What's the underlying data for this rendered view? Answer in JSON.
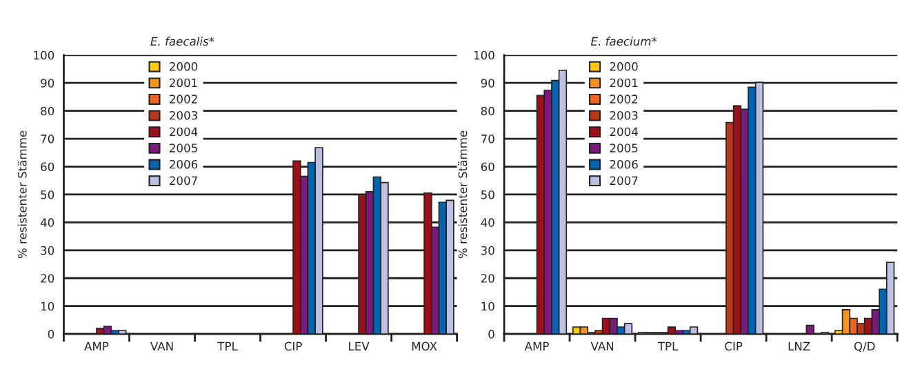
{
  "chart_data": [
    {
      "type": "bar",
      "title": "E. faecalis*",
      "ylabel": "% resistenter Stämme",
      "categories": [
        "AMP",
        "VAN",
        "TPL",
        "CIP",
        "LEV",
        "MOX"
      ],
      "ylim": [
        0,
        100
      ],
      "yticks": [
        0,
        10,
        20,
        30,
        40,
        50,
        60,
        70,
        80,
        90,
        100
      ],
      "grid": "y",
      "legend": "top left",
      "series": [
        {
          "name": "2000",
          "color": "#ffcc00",
          "values": [
            null,
            null,
            null,
            null,
            null,
            null
          ]
        },
        {
          "name": "2001",
          "color": "#f7941d",
          "values": [
            null,
            null,
            null,
            null,
            null,
            null
          ]
        },
        {
          "name": "2002",
          "color": "#f26522",
          "values": [
            null,
            null,
            null,
            null,
            null,
            null
          ]
        },
        {
          "name": "2003",
          "color": "#b5391a",
          "values": [
            null,
            null,
            null,
            null,
            null,
            null
          ]
        },
        {
          "name": "2004",
          "color": "#9b1117",
          "values": [
            2,
            null,
            null,
            62,
            50,
            50.5
          ]
        },
        {
          "name": "2005",
          "color": "#7b1a7a",
          "values": [
            2.7,
            null,
            null,
            56.5,
            51,
            38.3
          ]
        },
        {
          "name": "2006",
          "color": "#0066b3",
          "values": [
            1.2,
            null,
            null,
            61.5,
            56.3,
            47.2
          ]
        },
        {
          "name": "2007",
          "color": "#bcc0e3",
          "values": [
            1.2,
            null,
            null,
            66.8,
            54.3,
            47.9
          ]
        }
      ]
    },
    {
      "type": "bar",
      "title": "E. faecium*",
      "ylabel": "% resistenter Stämme",
      "categories": [
        "AMP",
        "VAN",
        "TPL",
        "CIP",
        "LNZ",
        "Q/D"
      ],
      "ylim": [
        0,
        100
      ],
      "yticks": [
        0,
        10,
        20,
        30,
        40,
        50,
        60,
        70,
        80,
        90,
        100
      ],
      "grid": "y",
      "legend": "top left",
      "series": [
        {
          "name": "2000",
          "color": "#ffcc00",
          "values": [
            null,
            2.5,
            0.5,
            null,
            null,
            1.2
          ]
        },
        {
          "name": "2001",
          "color": "#f7941d",
          "values": [
            null,
            2.5,
            0.5,
            null,
            null,
            8.7
          ]
        },
        {
          "name": "2002",
          "color": "#f26522",
          "values": [
            null,
            0.5,
            0.5,
            null,
            null,
            5.6
          ]
        },
        {
          "name": "2003",
          "color": "#b5391a",
          "values": [
            null,
            1.2,
            0.5,
            75.8,
            null,
            3.7
          ]
        },
        {
          "name": "2004",
          "color": "#9b1117",
          "values": [
            85.5,
            5.6,
            2.5,
            81.8,
            null,
            5.6
          ]
        },
        {
          "name": "2005",
          "color": "#7b1a7a",
          "values": [
            87.3,
            5.6,
            1.2,
            80.6,
            3.1,
            8.7
          ]
        },
        {
          "name": "2006",
          "color": "#0066b3",
          "values": [
            90.9,
            2.5,
            1.2,
            88.5,
            null,
            16
          ]
        },
        {
          "name": "2007",
          "color": "#bcc0e3",
          "values": [
            94.5,
            3.7,
            2.5,
            90.2,
            0.5,
            25.7
          ]
        }
      ]
    }
  ]
}
